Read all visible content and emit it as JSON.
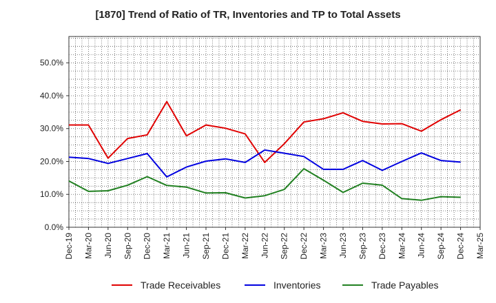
{
  "chart_data": {
    "type": "line",
    "title": "[1870]  Trend of Ratio of TR, Inventories and TP to Total Assets",
    "xlabel": "",
    "ylabel": "",
    "ylim": [
      0,
      0.58
    ],
    "yticks": [
      0,
      0.1,
      0.2,
      0.3,
      0.4,
      0.5
    ],
    "yticklabels": [
      "0.0%",
      "10.0%",
      "20.0%",
      "30.0%",
      "40.0%",
      "50.0%"
    ],
    "categories": [
      "Dec-19",
      "Mar-20",
      "Jun-20",
      "Sep-20",
      "Dec-20",
      "Mar-21",
      "Jun-21",
      "Sep-21",
      "Dec-21",
      "Mar-22",
      "Jun-22",
      "Sep-22",
      "Dec-22",
      "Mar-23",
      "Jun-23",
      "Sep-23",
      "Dec-23",
      "Mar-24",
      "Jun-24",
      "Sep-24",
      "Dec-24",
      "Mar-25"
    ],
    "grid": true,
    "legend_position": "bottom",
    "series": [
      {
        "name": "Trade Receivables",
        "color": "#e00000",
        "values": [
          0.311,
          0.311,
          0.21,
          0.27,
          0.281,
          0.382,
          0.278,
          0.311,
          0.301,
          0.284,
          0.197,
          0.254,
          0.32,
          0.33,
          0.348,
          0.322,
          0.314,
          0.315,
          0.292,
          0.327,
          0.357,
          null
        ]
      },
      {
        "name": "Inventories",
        "color": "#0000e0",
        "values": [
          0.213,
          0.209,
          0.194,
          0.209,
          0.224,
          0.153,
          0.183,
          0.201,
          0.208,
          0.197,
          0.235,
          0.225,
          0.215,
          0.176,
          0.176,
          0.203,
          0.173,
          0.2,
          0.226,
          0.203,
          0.198,
          null
        ]
      },
      {
        "name": "Trade Payables",
        "color": "#208020",
        "values": [
          0.141,
          0.109,
          0.111,
          0.128,
          0.154,
          0.127,
          0.122,
          0.104,
          0.105,
          0.089,
          0.096,
          0.115,
          0.178,
          0.143,
          0.106,
          0.134,
          0.128,
          0.087,
          0.082,
          0.093,
          0.091,
          null
        ]
      }
    ]
  }
}
